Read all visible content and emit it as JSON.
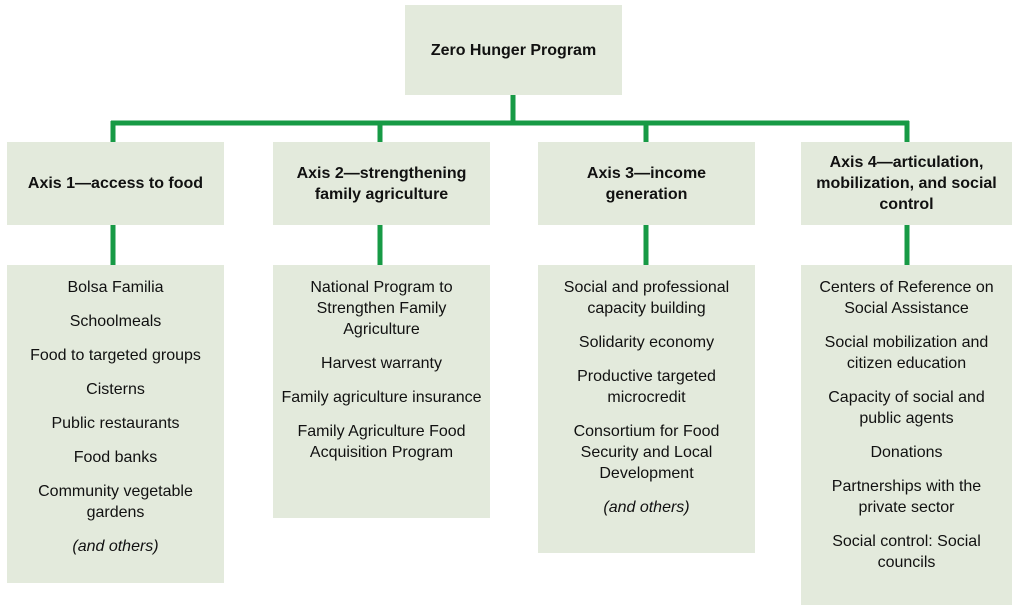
{
  "root": {
    "title": "Zero Hunger Program"
  },
  "axes": [
    {
      "title": "Axis 1—access to food",
      "items": [
        "Bolsa Familia",
        "Schoolmeals",
        "Food to targeted groups",
        "Cisterns",
        "Public restaurants",
        "Food banks",
        "Community vegetable gardens"
      ],
      "note": "(and others)"
    },
    {
      "title": "Axis 2—strengthening family agriculture",
      "items": [
        "National Program to Strengthen Family Agriculture",
        "Harvest warranty",
        "Family agriculture insurance",
        "Family Agriculture Food Acquisition Program"
      ]
    },
    {
      "title": "Axis 3—income generation",
      "items": [
        "Social and professional capacity building",
        "Solidarity economy",
        "Productive targeted microcredit",
        "Consortium for Food Security and Local Development"
      ],
      "note": "(and others)"
    },
    {
      "title": "Axis 4—articulation, mobilization, and social control",
      "items": [
        "Centers of Reference on Social Assistance",
        "Social mobilization and citizen education",
        "Capacity of social and public agents",
        "Donations",
        "Partnerships with the private sector",
        "Social control: Social councils"
      ]
    }
  ]
}
